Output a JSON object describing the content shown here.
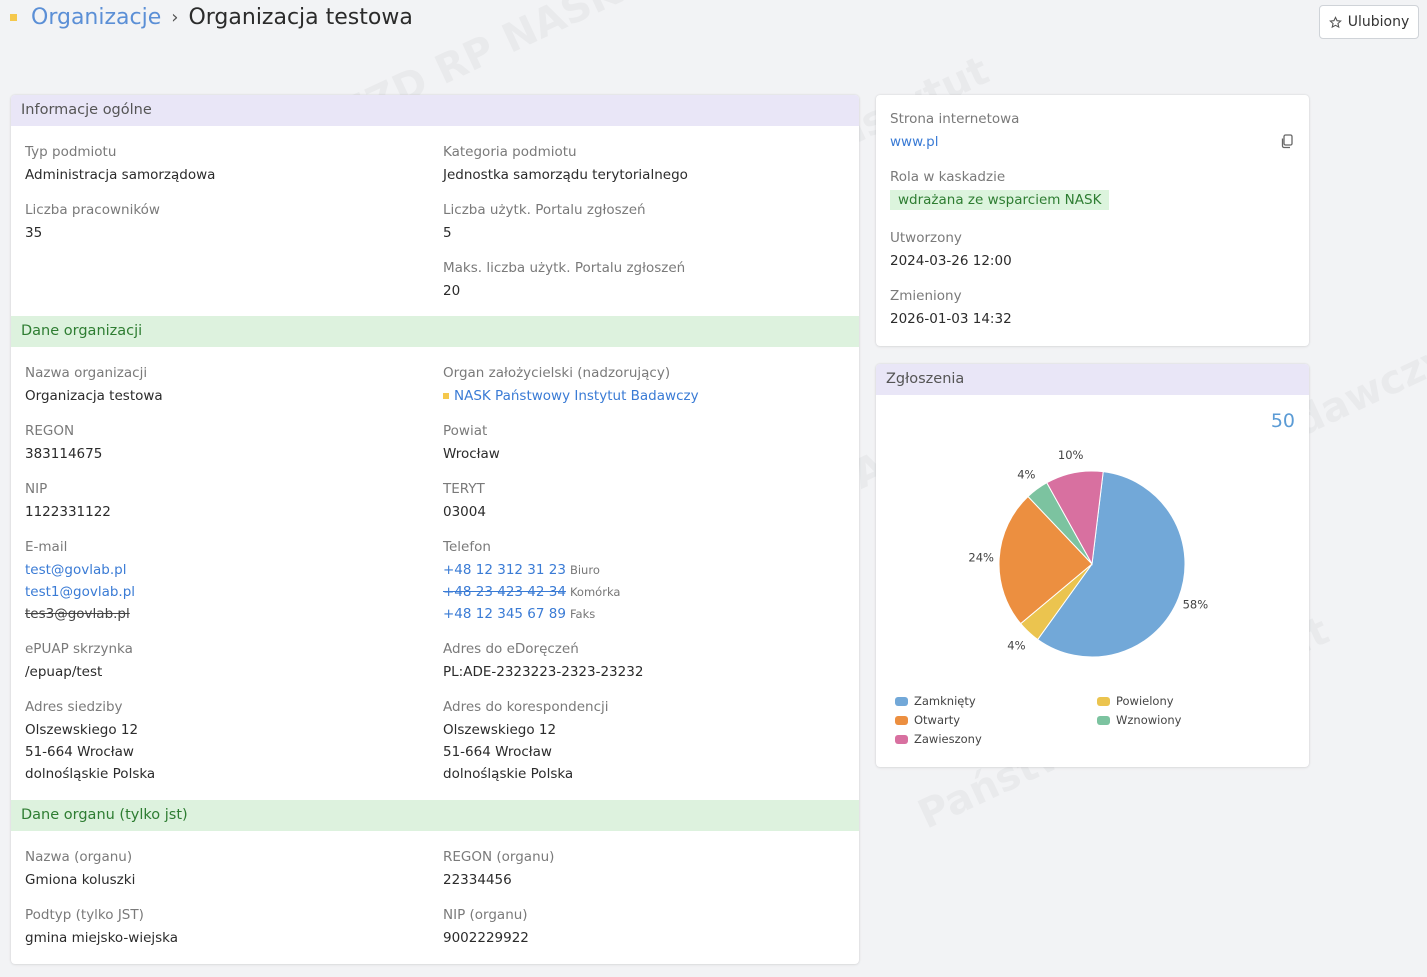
{
  "breadcrumb": {
    "parent": "Organizacje",
    "separator": "›",
    "current": "Organizacja testowa"
  },
  "favorite_button": {
    "label": "Ulubiony",
    "icon": "star-outline-icon"
  },
  "general_info": {
    "title": "Informacje ogólne",
    "entity_type": {
      "label": "Typ podmiotu",
      "value": "Administracja samorządowa"
    },
    "entity_category": {
      "label": "Kategoria podmiotu",
      "value": "Jednostka samorządu terytorialnego"
    },
    "employee_count": {
      "label": "Liczba pracowników",
      "value": "35"
    },
    "portal_users": {
      "label": "Liczba użytk. Portalu zgłoszeń",
      "value": "5"
    },
    "max_portal_users": {
      "label": "Maks. liczba użytk. Portalu zgłoszeń",
      "value": "20"
    }
  },
  "org_data": {
    "title": "Dane organizacji",
    "name": {
      "label": "Nazwa organizacji",
      "value": "Organizacja testowa"
    },
    "founder": {
      "label": "Organ założycielski (nadzorujący)",
      "value": "NASK Państwowy Instytut Badawczy"
    },
    "regon": {
      "label": "REGON",
      "value": "383114675"
    },
    "county": {
      "label": "Powiat",
      "value": "Wrocław"
    },
    "nip": {
      "label": "NIP",
      "value": "1122331122"
    },
    "teryt": {
      "label": "TERYT",
      "value": "03004"
    },
    "email": {
      "label": "E-mail",
      "values": [
        "test@govlab.pl",
        "test1@govlab.pl",
        "tes3@govlab.pl"
      ]
    },
    "phone": {
      "label": "Telefon",
      "values": [
        {
          "number": "+48 12 312 31 23",
          "type": "Biuro"
        },
        {
          "number": "+48 23 423 42 34",
          "type": "Komórka"
        },
        {
          "number": "+48 12 345 67 89",
          "type": "Faks"
        }
      ]
    },
    "epuap": {
      "label": "ePUAP skrzynka",
      "value": "/epuap/test"
    },
    "edoreczenia": {
      "label": "Adres do eDoręczeń",
      "value": "PL:ADE-2323223-2323-23232"
    },
    "hq_address": {
      "label": "Adres siedziby",
      "line1": "Olszewskiego 12",
      "line2": "51-664 Wrocław",
      "line3": "dolnośląskie Polska"
    },
    "corr_address": {
      "label": "Adres do korespondencji",
      "line1": "Olszewskiego 12",
      "line2": "51-664 Wrocław",
      "line3": "dolnośląskie Polska"
    }
  },
  "organ_data": {
    "title": "Dane organu (tylko jst)",
    "name": {
      "label": "Nazwa (organu)",
      "value": "Gmiona koluszki"
    },
    "regon": {
      "label": "REGON (organu)",
      "value": "22334456"
    },
    "subtype": {
      "label": "Podtyp (tylko JST)",
      "value": "gmina miejsko-wiejska"
    },
    "nip": {
      "label": "NIP (organu)",
      "value": "9002229922"
    }
  },
  "side_info": {
    "website": {
      "label": "Strona internetowa",
      "value": "www.pl"
    },
    "cascade_role": {
      "label": "Rola w kaskadzie",
      "value": "wdrażana ze wsparciem NASK"
    },
    "created": {
      "label": "Utworzony",
      "value": "2024-03-26 12:00"
    },
    "modified": {
      "label": "Zmieniony",
      "value": "2026-01-03 14:32"
    }
  },
  "tickets": {
    "title": "Zgłoszenia",
    "total": "50",
    "chart_data": {
      "type": "pie",
      "title": "",
      "categories": [
        "Zamknięty",
        "Powielony",
        "Otwarty",
        "Wznowiony",
        "Zawieszony"
      ],
      "values": [
        58,
        4,
        24,
        4,
        10
      ],
      "value_labels": [
        "58%",
        "4%",
        "24%",
        "4%",
        "10%"
      ],
      "colors": [
        "#72a8d8",
        "#ebc44f",
        "#ec8f40",
        "#7cc3a0",
        "#d870a0"
      ],
      "legend_position": "bottom"
    }
  }
}
